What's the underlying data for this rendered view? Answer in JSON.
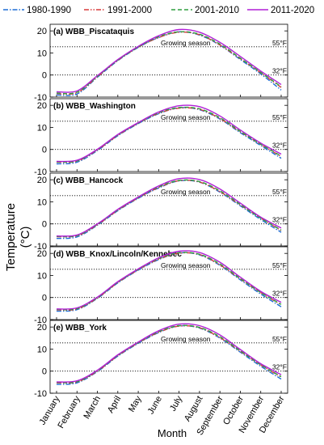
{
  "chart_data": {
    "type": "line",
    "xlabel": "Month",
    "ylabel": "Temperature",
    "ylabel_unit": "(°C)",
    "categories": [
      "January",
      "February",
      "March",
      "April",
      "May",
      "June",
      "July",
      "August",
      "September",
      "October",
      "November",
      "December"
    ],
    "legend": {
      "placement": "top",
      "entries": [
        {
          "name": "1980-1990",
          "color": "#1f6fd6",
          "dash": "dashdot"
        },
        {
          "name": "1991-2000",
          "color": "#d93a3a",
          "dash": "dashdotdot"
        },
        {
          "name": "2001-2010",
          "color": "#2e9e3e",
          "dash": "dashed"
        },
        {
          "name": "2011-2020",
          "color": "#b01fd6",
          "dash": "solid"
        }
      ]
    },
    "reference_lines": [
      {
        "label": "55°F",
        "value": 12.8
      },
      {
        "label": "32°F",
        "value": 0
      }
    ],
    "region_label": "Growing season",
    "ylim": [
      -10,
      23
    ],
    "yticks": [
      -10,
      0,
      10,
      20
    ],
    "panels": [
      {
        "title": "(a) WBB_Piscataquis",
        "series": [
          {
            "name": "1980-1990",
            "values": [
              -9,
              -8.6,
              -1,
              6.5,
              12.5,
              17,
              19.6,
              18.1,
              13.5,
              7,
              0.5,
              -6.8
            ]
          },
          {
            "name": "1991-2000",
            "values": [
              -8.4,
              -8,
              -0.8,
              6.7,
              12.6,
              17,
              19.4,
              18.3,
              13.6,
              7.4,
              1,
              -5.6
            ]
          },
          {
            "name": "2001-2010",
            "values": [
              -8.2,
              -7.8,
              -0.6,
              6.8,
              12.7,
              17.4,
              19.6,
              18.5,
              14,
              7.6,
              1.2,
              -5.3
            ]
          },
          {
            "name": "2011-2020",
            "values": [
              -7.6,
              -7.2,
              -0.3,
              7,
              13,
              17.8,
              20.6,
              19.4,
              14.8,
              8.4,
              1.8,
              -4.3
            ]
          }
        ]
      },
      {
        "title": "(b) WBB_Washington",
        "series": [
          {
            "name": "1980-1990",
            "values": [
              -6.5,
              -5.8,
              -0.5,
              6.2,
              11.7,
              16.2,
              18.9,
              18,
              13.8,
              7.6,
              1.8,
              -4
            ]
          },
          {
            "name": "1991-2000",
            "values": [
              -5.8,
              -5.3,
              -0.2,
              6.4,
              11.9,
              16.4,
              18.7,
              18.2,
              14,
              8,
              2.3,
              -3.2
            ]
          },
          {
            "name": "2001-2010",
            "values": [
              -5.6,
              -5.2,
              0,
              6.6,
              12,
              16.7,
              19,
              18.4,
              14.4,
              8.2,
              2.4,
              -3
            ]
          },
          {
            "name": "2011-2020",
            "values": [
              -5.4,
              -4.9,
              0.1,
              6.8,
              12.2,
              17,
              19.8,
              19.4,
              15.2,
              8.8,
              2.9,
              -2.1
            ]
          }
        ]
      },
      {
        "title": "(c) WBB_Hancock",
        "series": [
          {
            "name": "1980-1990",
            "values": [
              -6.6,
              -5.9,
              -0.6,
              6,
              11.6,
              16.3,
              19.5,
              18.9,
              14.4,
              8.2,
              2,
              -3.8
            ]
          },
          {
            "name": "1991-2000",
            "values": [
              -5.8,
              -5.4,
              -0.4,
              6.2,
              11.8,
              16.5,
              19.6,
              19,
              14.6,
              8.6,
              2.6,
              -3
            ]
          },
          {
            "name": "2001-2010",
            "values": [
              -5.7,
              -5.3,
              -0.2,
              6.4,
              12,
              16.8,
              19.7,
              19.2,
              15,
              8.8,
              2.6,
              -2.8
            ]
          },
          {
            "name": "2011-2020",
            "values": [
              -5.5,
              -5,
              0,
              6.6,
              12.2,
              17.2,
              20.5,
              20.1,
              15.8,
              9.4,
              3.1,
              -1.9
            ]
          }
        ]
      },
      {
        "title": "(d) WBB_Knox/Lincoln/Kennebec",
        "series": [
          {
            "name": "1980-1990",
            "values": [
              -6.2,
              -5.5,
              -0.4,
              6.6,
              12.4,
              17.2,
              20.2,
              19.3,
              14.6,
              8,
              1.6,
              -4.2
            ]
          },
          {
            "name": "1991-2000",
            "values": [
              -5.6,
              -5.2,
              -0.2,
              6.8,
              12.6,
              17.4,
              20.1,
              19.5,
              14.8,
              8.4,
              2.2,
              -3.3
            ]
          },
          {
            "name": "2001-2010",
            "values": [
              -5.4,
              -5,
              0,
              7,
              12.8,
              17.7,
              20.3,
              19.6,
              15.2,
              8.6,
              2.3,
              -3.1
            ]
          },
          {
            "name": "2011-2020",
            "values": [
              -5.2,
              -4.7,
              0.2,
              7.2,
              13,
              18,
              21,
              20.4,
              16,
              9.2,
              2.8,
              -2.2
            ]
          }
        ]
      },
      {
        "title": "(e) WBB_York",
        "series": [
          {
            "name": "1980-1990",
            "values": [
              -6,
              -5.3,
              -0.2,
              6.8,
              12.6,
              17.5,
              20.5,
              19.5,
              15,
              8.6,
              2.2,
              -3.6
            ]
          },
          {
            "name": "1991-2000",
            "values": [
              -5.3,
              -4.9,
              0,
              7,
              12.8,
              17.6,
              20.4,
              19.7,
              15.2,
              9,
              2.8,
              -2.7
            ]
          },
          {
            "name": "2001-2010",
            "values": [
              -5.1,
              -4.8,
              0.2,
              7.2,
              13,
              17.9,
              20.6,
              19.8,
              15.6,
              9.2,
              2.9,
              -2.5
            ]
          },
          {
            "name": "2011-2020",
            "values": [
              -4.9,
              -4.4,
              0.4,
              7.4,
              13.2,
              18.3,
              21.3,
              20.6,
              16.4,
              9.8,
              3.4,
              -1.6
            ]
          }
        ]
      }
    ]
  }
}
